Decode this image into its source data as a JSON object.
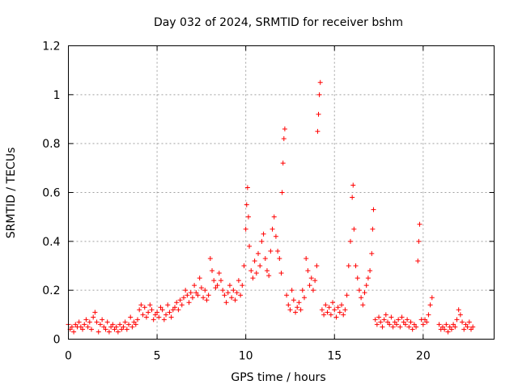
{
  "chart_data": {
    "type": "scatter",
    "title": "Day 032 of 2024, SRMTID for receiver bshm",
    "xlabel": "GPS time / hours",
    "ylabel": "SRMTID / TECUs",
    "xlim": [
      0,
      24
    ],
    "ylim": [
      0,
      1.2
    ],
    "xticks": [
      0,
      5,
      10,
      15,
      20
    ],
    "xtick_labels": [
      "0",
      "5",
      "10",
      "15",
      "20"
    ],
    "yticks": [
      0,
      0.2,
      0.4,
      0.6,
      0.8,
      1.0,
      1.2
    ],
    "ytick_labels": [
      "0",
      "0.2",
      "0.4",
      "0.6",
      "0.8",
      "1",
      "1.2"
    ],
    "grid": true,
    "marker": "+",
    "series": [
      {
        "name": "SRMTID",
        "color": "#ff0000",
        "points": [
          [
            0.0,
            0.06
          ],
          [
            0.1,
            0.04
          ],
          [
            0.2,
            0.05
          ],
          [
            0.3,
            0.03
          ],
          [
            0.4,
            0.06
          ],
          [
            0.5,
            0.05
          ],
          [
            0.6,
            0.07
          ],
          [
            0.7,
            0.05
          ],
          [
            0.8,
            0.04
          ],
          [
            0.9,
            0.06
          ],
          [
            1.0,
            0.08
          ],
          [
            1.1,
            0.05
          ],
          [
            1.2,
            0.07
          ],
          [
            1.3,
            0.04
          ],
          [
            1.4,
            0.09
          ],
          [
            1.5,
            0.11
          ],
          [
            1.6,
            0.07
          ],
          [
            1.7,
            0.03
          ],
          [
            1.8,
            0.06
          ],
          [
            1.9,
            0.08
          ],
          [
            2.0,
            0.05
          ],
          [
            2.1,
            0.04
          ],
          [
            2.2,
            0.07
          ],
          [
            2.3,
            0.03
          ],
          [
            2.4,
            0.05
          ],
          [
            2.5,
            0.06
          ],
          [
            2.6,
            0.04
          ],
          [
            2.7,
            0.05
          ],
          [
            2.8,
            0.03
          ],
          [
            2.9,
            0.06
          ],
          [
            3.0,
            0.04
          ],
          [
            3.1,
            0.05
          ],
          [
            3.2,
            0.07
          ],
          [
            3.3,
            0.04
          ],
          [
            3.4,
            0.06
          ],
          [
            3.5,
            0.09
          ],
          [
            3.6,
            0.05
          ],
          [
            3.7,
            0.07
          ],
          [
            3.8,
            0.06
          ],
          [
            3.9,
            0.08
          ],
          [
            4.0,
            0.12
          ],
          [
            4.1,
            0.14
          ],
          [
            4.2,
            0.1
          ],
          [
            4.3,
            0.13
          ],
          [
            4.4,
            0.09
          ],
          [
            4.5,
            0.11
          ],
          [
            4.6,
            0.14
          ],
          [
            4.7,
            0.12
          ],
          [
            4.8,
            0.08
          ],
          [
            4.9,
            0.1
          ],
          [
            5.0,
            0.11
          ],
          [
            5.1,
            0.09
          ],
          [
            5.2,
            0.13
          ],
          [
            5.3,
            0.12
          ],
          [
            5.4,
            0.08
          ],
          [
            5.5,
            0.1
          ],
          [
            5.6,
            0.14
          ],
          [
            5.7,
            0.11
          ],
          [
            5.8,
            0.09
          ],
          [
            5.9,
            0.12
          ],
          [
            6.0,
            0.13
          ],
          [
            6.1,
            0.15
          ],
          [
            6.2,
            0.12
          ],
          [
            6.3,
            0.16
          ],
          [
            6.4,
            0.14
          ],
          [
            6.5,
            0.17
          ],
          [
            6.6,
            0.2
          ],
          [
            6.7,
            0.18
          ],
          [
            6.8,
            0.15
          ],
          [
            6.9,
            0.19
          ],
          [
            7.0,
            0.17
          ],
          [
            7.1,
            0.22
          ],
          [
            7.2,
            0.19
          ],
          [
            7.3,
            0.18
          ],
          [
            7.4,
            0.25
          ],
          [
            7.5,
            0.21
          ],
          [
            7.6,
            0.17
          ],
          [
            7.7,
            0.2
          ],
          [
            7.8,
            0.16
          ],
          [
            7.9,
            0.18
          ],
          [
            8.0,
            0.33
          ],
          [
            8.1,
            0.28
          ],
          [
            8.2,
            0.24
          ],
          [
            8.3,
            0.21
          ],
          [
            8.4,
            0.22
          ],
          [
            8.5,
            0.27
          ],
          [
            8.6,
            0.24
          ],
          [
            8.7,
            0.2
          ],
          [
            8.8,
            0.18
          ],
          [
            8.9,
            0.15
          ],
          [
            9.0,
            0.19
          ],
          [
            9.1,
            0.22
          ],
          [
            9.2,
            0.17
          ],
          [
            9.3,
            0.2
          ],
          [
            9.4,
            0.16
          ],
          [
            9.5,
            0.19
          ],
          [
            9.6,
            0.24
          ],
          [
            9.7,
            0.18
          ],
          [
            9.8,
            0.22
          ],
          [
            9.9,
            0.3
          ],
          [
            10.0,
            0.45
          ],
          [
            10.05,
            0.55
          ],
          [
            10.1,
            0.62
          ],
          [
            10.15,
            0.5
          ],
          [
            10.2,
            0.38
          ],
          [
            10.3,
            0.28
          ],
          [
            10.4,
            0.25
          ],
          [
            10.5,
            0.32
          ],
          [
            10.6,
            0.27
          ],
          [
            10.7,
            0.35
          ],
          [
            10.8,
            0.3
          ],
          [
            10.9,
            0.4
          ],
          [
            11.0,
            0.43
          ],
          [
            11.1,
            0.33
          ],
          [
            11.2,
            0.28
          ],
          [
            11.3,
            0.26
          ],
          [
            11.4,
            0.36
          ],
          [
            11.5,
            0.45
          ],
          [
            11.6,
            0.5
          ],
          [
            11.7,
            0.42
          ],
          [
            11.8,
            0.36
          ],
          [
            11.9,
            0.33
          ],
          [
            12.0,
            0.27
          ],
          [
            12.05,
            0.6
          ],
          [
            12.1,
            0.72
          ],
          [
            12.15,
            0.82
          ],
          [
            12.2,
            0.86
          ],
          [
            12.3,
            0.18
          ],
          [
            12.4,
            0.14
          ],
          [
            12.5,
            0.12
          ],
          [
            12.6,
            0.2
          ],
          [
            12.7,
            0.16
          ],
          [
            12.8,
            0.11
          ],
          [
            12.9,
            0.13
          ],
          [
            13.0,
            0.15
          ],
          [
            13.1,
            0.12
          ],
          [
            13.2,
            0.2
          ],
          [
            13.3,
            0.17
          ],
          [
            13.4,
            0.33
          ],
          [
            13.5,
            0.28
          ],
          [
            13.6,
            0.22
          ],
          [
            13.7,
            0.25
          ],
          [
            13.8,
            0.2
          ],
          [
            13.9,
            0.24
          ],
          [
            14.0,
            0.3
          ],
          [
            14.05,
            0.85
          ],
          [
            14.1,
            0.92
          ],
          [
            14.15,
            1.0
          ],
          [
            14.2,
            1.05
          ],
          [
            14.3,
            0.12
          ],
          [
            14.4,
            0.1
          ],
          [
            14.5,
            0.14
          ],
          [
            14.6,
            0.11
          ],
          [
            14.7,
            0.13
          ],
          [
            14.8,
            0.1
          ],
          [
            14.9,
            0.15
          ],
          [
            15.0,
            0.12
          ],
          [
            15.1,
            0.09
          ],
          [
            15.2,
            0.13
          ],
          [
            15.3,
            0.11
          ],
          [
            15.4,
            0.14
          ],
          [
            15.5,
            0.1
          ],
          [
            15.6,
            0.12
          ],
          [
            15.7,
            0.18
          ],
          [
            15.8,
            0.3
          ],
          [
            15.9,
            0.4
          ],
          [
            16.0,
            0.58
          ],
          [
            16.05,
            0.63
          ],
          [
            16.1,
            0.45
          ],
          [
            16.2,
            0.3
          ],
          [
            16.3,
            0.25
          ],
          [
            16.4,
            0.2
          ],
          [
            16.5,
            0.17
          ],
          [
            16.6,
            0.14
          ],
          [
            16.7,
            0.19
          ],
          [
            16.8,
            0.22
          ],
          [
            16.9,
            0.25
          ],
          [
            17.0,
            0.28
          ],
          [
            17.1,
            0.35
          ],
          [
            17.15,
            0.45
          ],
          [
            17.2,
            0.53
          ],
          [
            17.3,
            0.08
          ],
          [
            17.4,
            0.06
          ],
          [
            17.5,
            0.09
          ],
          [
            17.6,
            0.07
          ],
          [
            17.7,
            0.05
          ],
          [
            17.8,
            0.08
          ],
          [
            17.9,
            0.1
          ],
          [
            18.0,
            0.07
          ],
          [
            18.1,
            0.06
          ],
          [
            18.2,
            0.09
          ],
          [
            18.3,
            0.05
          ],
          [
            18.4,
            0.07
          ],
          [
            18.5,
            0.06
          ],
          [
            18.6,
            0.08
          ],
          [
            18.7,
            0.05
          ],
          [
            18.8,
            0.09
          ],
          [
            18.9,
            0.07
          ],
          [
            19.0,
            0.06
          ],
          [
            19.1,
            0.08
          ],
          [
            19.2,
            0.05
          ],
          [
            19.3,
            0.07
          ],
          [
            19.4,
            0.04
          ],
          [
            19.5,
            0.06
          ],
          [
            19.6,
            0.05
          ],
          [
            19.7,
            0.32
          ],
          [
            19.75,
            0.4
          ],
          [
            19.8,
            0.47
          ],
          [
            19.9,
            0.08
          ],
          [
            20.0,
            0.06
          ],
          [
            20.1,
            0.08
          ],
          [
            20.2,
            0.07
          ],
          [
            20.3,
            0.1
          ],
          [
            20.4,
            0.14
          ],
          [
            20.5,
            0.17
          ],
          [
            20.9,
            0.06
          ],
          [
            21.0,
            0.04
          ],
          [
            21.1,
            0.05
          ],
          [
            21.2,
            0.04
          ],
          [
            21.3,
            0.06
          ],
          [
            21.4,
            0.03
          ],
          [
            21.5,
            0.05
          ],
          [
            21.6,
            0.04
          ],
          [
            21.7,
            0.06
          ],
          [
            21.8,
            0.05
          ],
          [
            21.9,
            0.08
          ],
          [
            22.0,
            0.12
          ],
          [
            22.1,
            0.1
          ],
          [
            22.2,
            0.07
          ],
          [
            22.3,
            0.04
          ],
          [
            22.4,
            0.06
          ],
          [
            22.5,
            0.05
          ],
          [
            22.6,
            0.07
          ],
          [
            22.7,
            0.04
          ],
          [
            22.8,
            0.05
          ]
        ]
      }
    ]
  }
}
